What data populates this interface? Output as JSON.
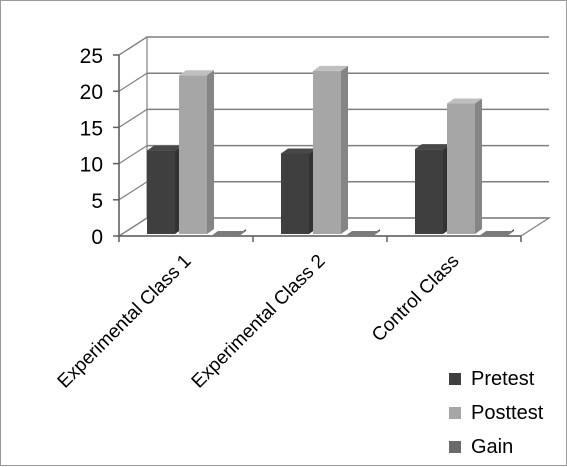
{
  "chart_data": {
    "type": "bar",
    "style": "3d-clustered-column",
    "categories": [
      "Experimental Class 1",
      "Experimental Class 2",
      "Control Class"
    ],
    "series": [
      {
        "name": "Pretest",
        "values": [
          11.8,
          11.4,
          12.0
        ],
        "color": "#3f3f3f"
      },
      {
        "name": "Posttest",
        "values": [
          22.2,
          22.8,
          18.3
        ],
        "color": "#a6a6a6"
      },
      {
        "name": "Gain",
        "values": [
          0,
          0,
          0
        ],
        "color": "#6b6b6b"
      }
    ],
    "y_ticks": [
      "0",
      "5",
      "10",
      "15",
      "20",
      "25"
    ],
    "ylim": [
      0,
      25
    ],
    "grid": true,
    "legend_position": "bottom-right"
  }
}
